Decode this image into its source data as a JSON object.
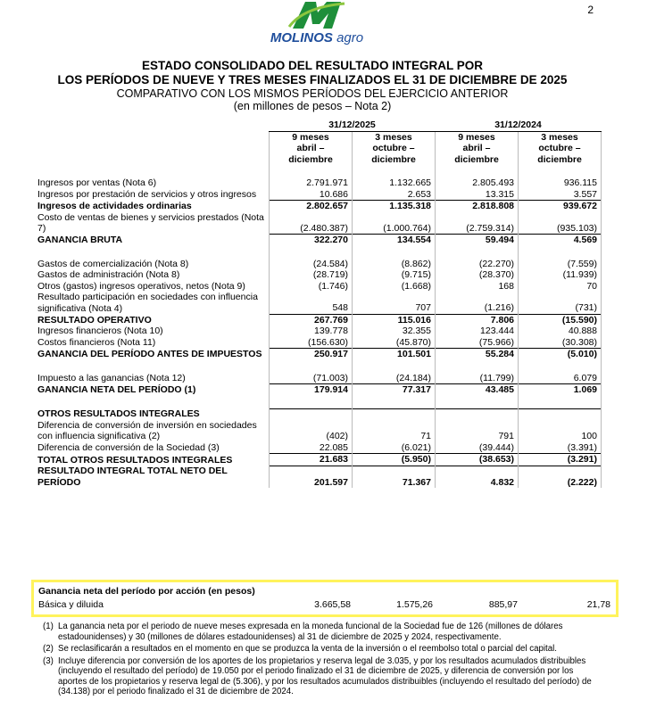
{
  "page_number": "2",
  "logo": {
    "brand": "MOLINOS",
    "suffix": "agro"
  },
  "header": {
    "title_lines": [
      "ESTADO CONSOLIDADO DEL RESULTADO INTEGRAL POR",
      "LOS PERÍODOS DE NUEVE Y TRES MESES FINALIZADOS EL 31 DE DICIEMBRE DE 2025"
    ],
    "subtitle": "COMPARATIVO CON LOS MISMOS PERÍODOS DEL EJERCICIO ANTERIOR",
    "units": "(en millones de pesos – Nota 2)"
  },
  "table": {
    "periods": [
      "31/12/2025",
      "31/12/2024"
    ],
    "columns": [
      [
        "9 meses",
        "abril –",
        "diciembre"
      ],
      [
        "3 meses",
        "octubre –",
        "diciembre"
      ],
      [
        "9 meses",
        "abril –",
        "diciembre"
      ],
      [
        "3 meses",
        "octubre –",
        "diciembre"
      ]
    ],
    "sections": [
      [
        {
          "label": "Ingresos por ventas (Nota 6)",
          "values": [
            "2.791.971",
            "1.132.665",
            "2.805.493",
            "936.115"
          ]
        },
        {
          "label": "Ingresos por prestación de servicios y otros ingresos",
          "values": [
            "10.686",
            "2.653",
            "13.315",
            "3.557"
          ]
        },
        {
          "label": "Ingresos de actividades ordinarias",
          "values": [
            "2.802.657",
            "1.135.318",
            "2.818.808",
            "939.672"
          ],
          "bold": true
        },
        {
          "label": "Costo de ventas de bienes y servicios prestados (Nota 7)",
          "values": [
            "(2.480.387)",
            "(1.000.764)",
            "(2.759.314)",
            "(935.103)"
          ]
        },
        {
          "label": "GANANCIA BRUTA",
          "values": [
            "322.270",
            "134.554",
            "59.494",
            "4.569"
          ],
          "bold": true
        }
      ],
      [
        {
          "label": "Gastos de comercialización (Nota 8)",
          "values": [
            "(24.584)",
            "(8.862)",
            "(22.270)",
            "(7.559)"
          ]
        },
        {
          "label": "Gastos de administración (Nota 8)",
          "values": [
            "(28.719)",
            "(9.715)",
            "(28.370)",
            "(11.939)"
          ]
        },
        {
          "label": "Otros (gastos) ingresos operativos, netos (Nota 9)",
          "values": [
            "(1.746)",
            "(1.668)",
            "168",
            "70"
          ]
        },
        {
          "label": "Resultado participación en sociedades con influencia significativa (Nota 4)",
          "values": [
            "548",
            "707",
            "(1.216)",
            "(731)"
          ]
        },
        {
          "label": "RESULTADO OPERATIVO",
          "values": [
            "267.769",
            "115.016",
            "7.806",
            "(15.590)"
          ],
          "bold": true
        },
        {
          "label": "Ingresos financieros (Nota 10)",
          "values": [
            "139.778",
            "32.355",
            "123.444",
            "40.888"
          ]
        },
        {
          "label": "Costos financieros (Nota 11)",
          "values": [
            "(156.630)",
            "(45.870)",
            "(75.966)",
            "(30.308)"
          ]
        },
        {
          "label": "GANANCIA DEL PERÍODO ANTES DE IMPUESTOS",
          "values": [
            "250.917",
            "101.501",
            "55.284",
            "(5.010)"
          ],
          "bold": true
        }
      ],
      [
        {
          "label": "Impuesto a las ganancias (Nota 12)",
          "values": [
            "(71.003)",
            "(24.184)",
            "(11.799)",
            "6.079"
          ]
        },
        {
          "label": "GANANCIA NETA DEL PERÍODO (1)",
          "values": [
            "179.914",
            "77.317",
            "43.485",
            "1.069"
          ],
          "bold": true
        }
      ],
      [
        {
          "label": "OTROS RESULTADOS INTEGRALES",
          "bold": true
        },
        {
          "label": "Diferencia de conversión de inversión en sociedades con influencia significativa (2)",
          "values": [
            "(402)",
            "71",
            "791",
            "100"
          ]
        },
        {
          "label": "Diferencia de conversión de la Sociedad (3)",
          "values": [
            "22.085",
            "(6.021)",
            "(39.444)",
            "(3.391)"
          ]
        },
        {
          "label": "TOTAL OTROS RESULTADOS INTEGRALES",
          "values": [
            "21.683",
            "(5.950)",
            "(38.653)",
            "(3.291)"
          ],
          "bold": true
        },
        {
          "label": "RESULTADO INTEGRAL TOTAL NETO DEL PERÍODO",
          "values": [
            "201.597",
            "71.367",
            "4.832",
            "(2.222)"
          ],
          "bold": true
        }
      ]
    ]
  },
  "eps": {
    "title": "Ganancia neta del período por acción (en pesos)",
    "label": "Básica y diluida",
    "values": [
      "3.665,58",
      "1.575,26",
      "885,97",
      "21,78"
    ]
  },
  "footnotes": [
    {
      "mark": "(1)",
      "text": "La ganancia neta por el periodo de nueve meses expresada en la moneda funcional de la Sociedad fue de 126 (millones de dólares estadounidenses) y 30 (millones de dólares estadounidenses) al 31 de diciembre de 2025 y 2024, respectivamente."
    },
    {
      "mark": "(2)",
      "text": "Se reclasificarán a resultados en el momento en que se produzca la venta de la inversión o el reembolso total o parcial del capital."
    },
    {
      "mark": "(3)",
      "text": "Incluye diferencia por conversión de los aportes de los propietarios y reserva legal de 3.035, y por los resultados acumulados distribuibles (incluyendo el resultado del período) de 19.050 por el periodo finalizado el 31 de diciembre de 2025, y diferencia de conversión por los aportes de los propietarios y reserva legal de (5.306), y por los resultados acumulados distribuibles (incluyendo el resultado del período) de (34.138) por el periodo finalizado el 31 de diciembre de 2024."
    }
  ]
}
